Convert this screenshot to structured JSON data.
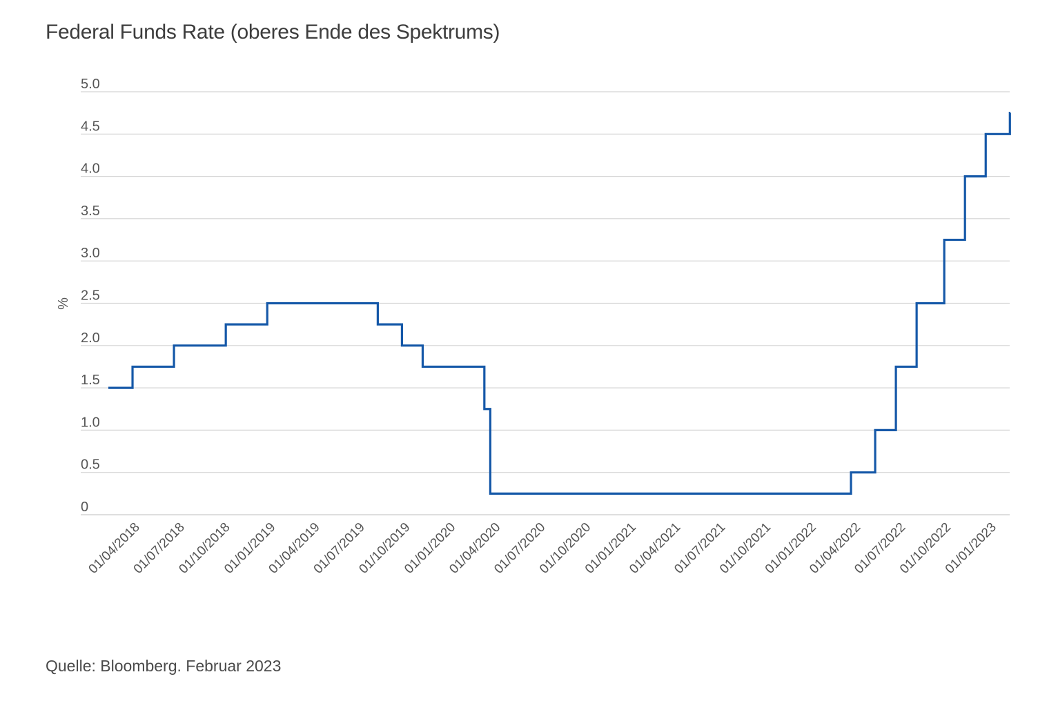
{
  "title": "Federal Funds Rate (oberes Ende des Spektrums)",
  "source": "Quelle: Bloomberg. Februar 2023",
  "chart_data": {
    "type": "line",
    "step": true,
    "ylabel": "%",
    "xlabel": "",
    "ylim": [
      0,
      5.0
    ],
    "xlim": [
      "2018-02-01",
      "2023-02-03"
    ],
    "grid": true,
    "y_ticks": [
      {
        "value": 0,
        "label": "0"
      },
      {
        "value": 0.5,
        "label": "0.5"
      },
      {
        "value": 1.0,
        "label": "1.0"
      },
      {
        "value": 1.5,
        "label": "1.5"
      },
      {
        "value": 2.0,
        "label": "2.0"
      },
      {
        "value": 2.5,
        "label": "2.5"
      },
      {
        "value": 3.0,
        "label": "3.0"
      },
      {
        "value": 3.5,
        "label": "3.5"
      },
      {
        "value": 4.0,
        "label": "4.0"
      },
      {
        "value": 4.5,
        "label": "4.5"
      },
      {
        "value": 5.0,
        "label": "5.0"
      }
    ],
    "x_ticks": [
      {
        "date": "2018-04-01",
        "label": "01/04/2018"
      },
      {
        "date": "2018-07-01",
        "label": "01/07/2018"
      },
      {
        "date": "2018-10-01",
        "label": "01/10/2018"
      },
      {
        "date": "2019-01-01",
        "label": "01/01/2019"
      },
      {
        "date": "2019-04-01",
        "label": "01/04/2019"
      },
      {
        "date": "2019-07-01",
        "label": "01/07/2019"
      },
      {
        "date": "2019-10-01",
        "label": "01/10/2019"
      },
      {
        "date": "2020-01-01",
        "label": "01/01/2020"
      },
      {
        "date": "2020-04-01",
        "label": "01/04/2020"
      },
      {
        "date": "2020-07-01",
        "label": "01/07/2020"
      },
      {
        "date": "2020-10-01",
        "label": "01/10/2020"
      },
      {
        "date": "2021-01-01",
        "label": "01/01/2021"
      },
      {
        "date": "2021-04-01",
        "label": "01/04/2021"
      },
      {
        "date": "2021-07-01",
        "label": "01/07/2021"
      },
      {
        "date": "2021-10-01",
        "label": "01/10/2021"
      },
      {
        "date": "2022-01-01",
        "label": "01/01/2022"
      },
      {
        "date": "2022-04-01",
        "label": "01/04/2022"
      },
      {
        "date": "2022-07-01",
        "label": "01/07/2022"
      },
      {
        "date": "2022-10-01",
        "label": "01/10/2022"
      },
      {
        "date": "2023-01-01",
        "label": "01/01/2023"
      }
    ],
    "series": [
      {
        "color": "#1558a8",
        "points": [
          {
            "x": "2018-02-01",
            "y": 1.5
          },
          {
            "x": "2018-03-22",
            "y": 1.75
          },
          {
            "x": "2018-06-14",
            "y": 2.0
          },
          {
            "x": "2018-09-27",
            "y": 2.25
          },
          {
            "x": "2018-12-20",
            "y": 2.5
          },
          {
            "x": "2019-08-01",
            "y": 2.25
          },
          {
            "x": "2019-09-19",
            "y": 2.0
          },
          {
            "x": "2019-10-31",
            "y": 1.75
          },
          {
            "x": "2020-03-04",
            "y": 1.25
          },
          {
            "x": "2020-03-16",
            "y": 0.25
          },
          {
            "x": "2022-03-17",
            "y": 0.5
          },
          {
            "x": "2022-05-05",
            "y": 1.0
          },
          {
            "x": "2022-06-16",
            "y": 1.75
          },
          {
            "x": "2022-07-28",
            "y": 2.5
          },
          {
            "x": "2022-09-22",
            "y": 3.25
          },
          {
            "x": "2022-11-03",
            "y": 4.0
          },
          {
            "x": "2022-12-15",
            "y": 4.5
          },
          {
            "x": "2023-02-02",
            "y": 4.75
          }
        ],
        "end": "2023-02-03"
      }
    ]
  }
}
